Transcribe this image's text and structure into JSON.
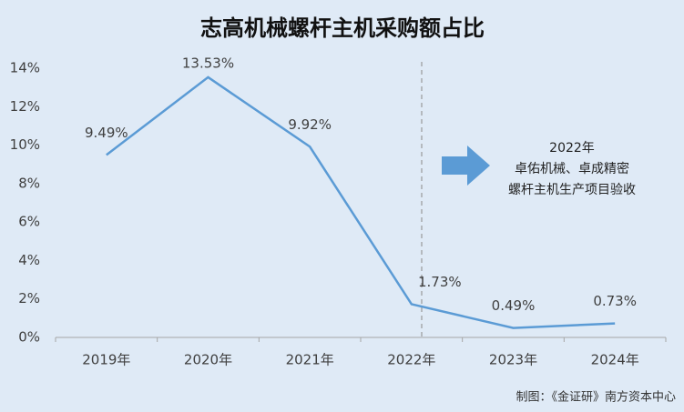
{
  "chart_data": {
    "type": "line",
    "title": "志高机械螺杆主机采购额占比",
    "categories": [
      "2019年",
      "2020年",
      "2021年",
      "2022年",
      "2023年",
      "2024年"
    ],
    "series": [
      {
        "name": "螺杆主机采购额占比",
        "color": "#5b9bd5",
        "values": [
          9.49,
          13.53,
          9.92,
          1.73,
          0.49,
          0.73
        ],
        "value_labels": [
          "9.49%",
          "13.53%",
          "9.92%",
          "1.73%",
          "0.49%",
          "0.73%"
        ]
      }
    ],
    "ylim": [
      0,
      14
    ],
    "yticks": [
      {
        "value": 0,
        "label": "0%"
      },
      {
        "value": 2,
        "label": "2%"
      },
      {
        "value": 4,
        "label": "4%"
      },
      {
        "value": 6,
        "label": "6%"
      },
      {
        "value": 8,
        "label": "8%"
      },
      {
        "value": 10,
        "label": "10%"
      },
      {
        "value": 12,
        "label": "12%"
      },
      {
        "value": 14,
        "label": "14%"
      }
    ],
    "annotation": [
      "2022年",
      "卓佑机械、卓成精密",
      "螺杆主机生产项目验收"
    ],
    "source": "制图：《金证研》南方资本中心"
  }
}
